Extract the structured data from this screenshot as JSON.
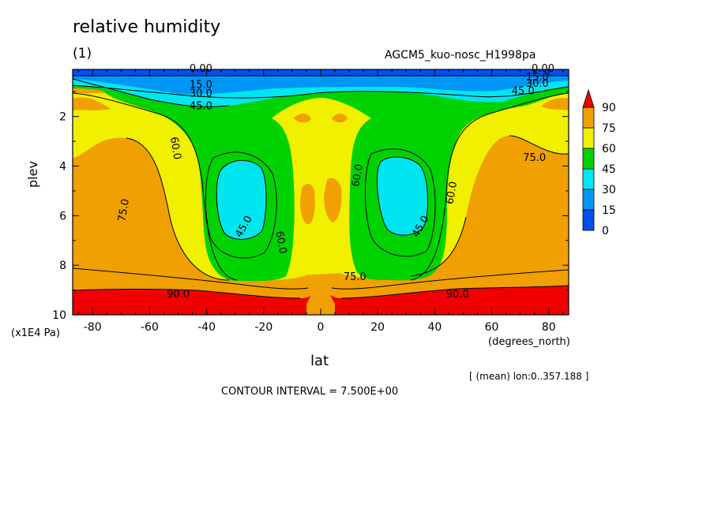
{
  "header": {
    "title": "relative humidity",
    "subtitle": "(1)",
    "run_label": "AGCM5_kuo-nosc_H1998pa"
  },
  "footer": {
    "mean_note": "[ (mean) lon:0..357.188 ]",
    "contour_interval": "CONTOUR INTERVAL = 7.500E+00"
  },
  "chart_data": {
    "type": "contour",
    "title": "relative humidity",
    "xlabel": "lat",
    "x_units": "(degrees_north)",
    "ylabel": "plev",
    "y_units": "(x1E4 Pa)",
    "xlim": [
      -87,
      87
    ],
    "ylim": [
      10,
      0.1
    ],
    "y_axis_inverted": true,
    "x_ticks": [
      -80,
      -60,
      -40,
      -20,
      0,
      20,
      40,
      60,
      80
    ],
    "y_ticks": [
      2,
      4,
      6,
      8,
      10
    ],
    "contour_interval": 7.5,
    "colorbar": {
      "levels": [
        0,
        15,
        30,
        45,
        60,
        75,
        90
      ],
      "colors": [
        "#0050f0",
        "#0096f5",
        "#00e6f0",
        "#00d200",
        "#f0f000",
        "#f0a000",
        "#f00000"
      ],
      "tick_labels": [
        "0",
        "15",
        "30",
        "45",
        "60",
        "75",
        "90"
      ]
    },
    "contour_labels": [
      {
        "text": "0.00",
        "lat": -42,
        "plev": 0.2
      },
      {
        "text": "15.0",
        "lat": -42,
        "plev": 0.85
      },
      {
        "text": "30.0",
        "lat": -42,
        "plev": 1.2
      },
      {
        "text": "45.0",
        "lat": -42,
        "plev": 1.7
      },
      {
        "text": "0.00",
        "lat": 78,
        "plev": 0.2
      },
      {
        "text": "15.0",
        "lat": 76,
        "plev": 0.55
      },
      {
        "text": "30.0",
        "lat": 76,
        "plev": 0.8
      },
      {
        "text": "45.0",
        "lat": 71,
        "plev": 1.1
      },
      {
        "text": "60.0",
        "lat": -52,
        "plev": 3.3
      },
      {
        "text": "75.0",
        "lat": -68,
        "plev": 5.8
      },
      {
        "text": "45.0",
        "lat": -26,
        "plev": 6.5
      },
      {
        "text": "60.0",
        "lat": -15,
        "plev": 7.1
      },
      {
        "text": "90.0",
        "lat": -50,
        "plev": 9.3
      },
      {
        "text": "60.0",
        "lat": 14,
        "plev": 4.4
      },
      {
        "text": "45.0",
        "lat": 36,
        "plev": 6.5
      },
      {
        "text": "60.0",
        "lat": 47,
        "plev": 5.1
      },
      {
        "text": "75.0",
        "lat": 75,
        "plev": 3.8
      },
      {
        "text": "75.0",
        "lat": 12,
        "plev": 8.6
      },
      {
        "text": "90.0",
        "lat": 48,
        "plev": 9.3
      }
    ]
  }
}
